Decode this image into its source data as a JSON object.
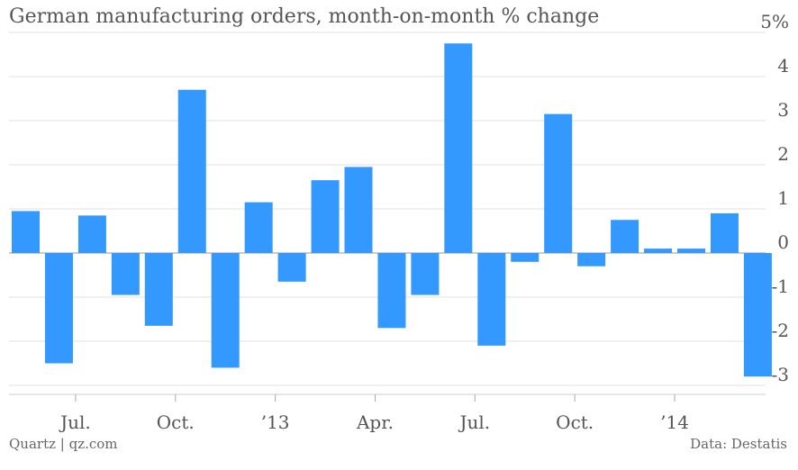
{
  "chart_data": {
    "type": "bar",
    "title": "German manufacturing orders, month-on-month % change",
    "xlabel": "",
    "ylabel": "",
    "ylim": [
      -3,
      5
    ],
    "y_ticks": [
      "5%",
      "4",
      "3",
      "2",
      "1",
      "0",
      "-1",
      "-2",
      "-3"
    ],
    "x_ticks": [
      {
        "label": "Jul.",
        "index": 1.5
      },
      {
        "label": "Oct.",
        "index": 4.5
      },
      {
        "label": "’13",
        "index": 7.5
      },
      {
        "label": "Apr.",
        "index": 10.5
      },
      {
        "label": "Jul.",
        "index": 13.5
      },
      {
        "label": "Oct.",
        "index": 16.5
      },
      {
        "label": "’14",
        "index": 19.5
      }
    ],
    "series": [
      {
        "values": [
          0.95,
          -2.5,
          0.85,
          -0.95,
          -1.65,
          3.7,
          -2.6,
          1.15,
          -0.65,
          1.65,
          1.95,
          -1.7,
          -0.95,
          4.75,
          -2.1,
          -0.2,
          3.15,
          -0.3,
          0.75,
          0.1,
          0.1,
          0.9,
          -2.8
        ]
      }
    ],
    "color": "#3399ff",
    "grid": true,
    "y_axis_position": "right"
  },
  "footer": {
    "source_left": "Quartz | qz.com",
    "source_right": "Data: Destatis"
  }
}
